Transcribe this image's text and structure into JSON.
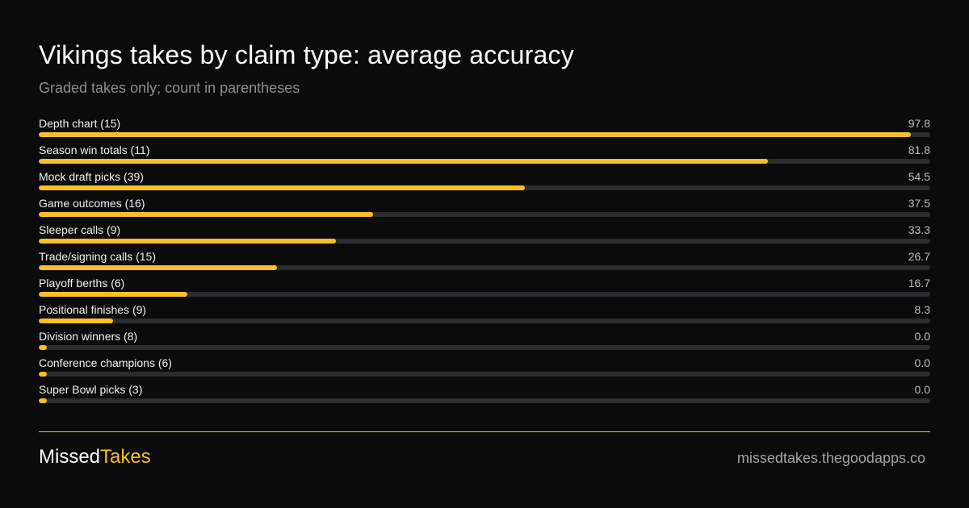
{
  "chart_data": {
    "type": "bar",
    "orientation": "horizontal",
    "title": "Vikings takes by claim type: average accuracy",
    "subtitle": "Graded takes only; count in parentheses",
    "xlim": [
      0,
      100
    ],
    "categories": [
      "Depth chart (15)",
      "Season win totals (11)",
      "Mock draft picks (39)",
      "Game outcomes (16)",
      "Sleeper calls (9)",
      "Trade/signing calls (15)",
      "Playoff berths (6)",
      "Positional finishes (9)",
      "Division winners (8)",
      "Conference champions (6)",
      "Super Bowl picks (3)"
    ],
    "values": [
      97.8,
      81.8,
      54.5,
      37.5,
      33.3,
      26.7,
      16.7,
      8.3,
      0.0,
      0.0,
      0.0
    ],
    "value_labels": [
      "97.8",
      "81.8",
      "54.5",
      "37.5",
      "33.3",
      "26.7",
      "16.7",
      "8.3",
      "0.0",
      "0.0",
      "0.0"
    ],
    "bar_color": "#fbbf24",
    "track_color": "#2b2b30"
  },
  "footer": {
    "brand_part1": "Missed",
    "brand_part2": "Takes",
    "site": "missedtakes.thegoodapps.co",
    "accent_color": "#fbbf24"
  }
}
